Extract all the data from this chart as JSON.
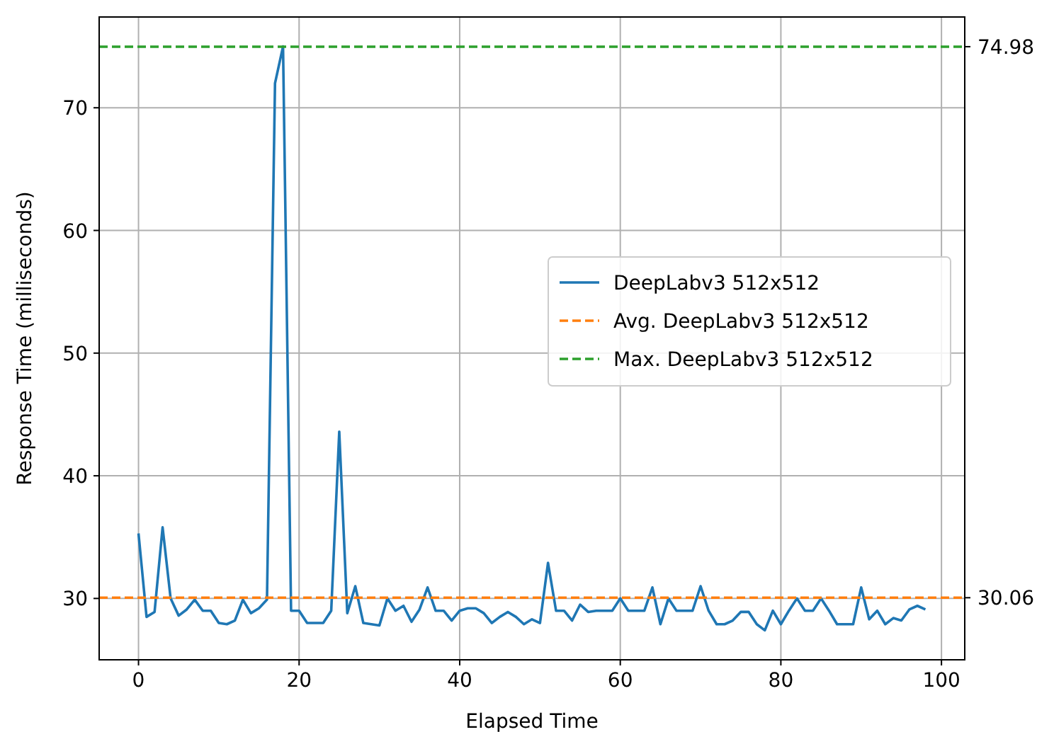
{
  "chart_data": {
    "type": "line",
    "xlabel": "Elapsed Time",
    "ylabel": "Response Time (milliseconds)",
    "x": [
      0,
      1,
      2,
      3,
      4,
      5,
      6,
      7,
      8,
      9,
      10,
      11,
      12,
      13,
      14,
      15,
      16,
      17,
      18,
      19,
      20,
      21,
      22,
      23,
      24,
      25,
      26,
      27,
      28,
      29,
      30,
      31,
      32,
      33,
      34,
      35,
      36,
      37,
      38,
      39,
      40,
      41,
      42,
      43,
      44,
      45,
      46,
      47,
      48,
      49,
      50,
      51,
      52,
      53,
      54,
      55,
      56,
      57,
      58,
      59,
      60,
      61,
      62,
      63,
      64,
      65,
      66,
      67,
      68,
      69,
      70,
      71,
      72,
      73,
      74,
      75,
      76,
      77,
      78,
      79,
      80,
      81,
      82,
      83,
      84,
      85,
      86,
      87,
      88,
      89,
      90,
      91,
      92,
      93,
      94,
      95,
      96,
      97,
      98
    ],
    "series": [
      {
        "name": "DeepLabv3 512x512",
        "color": "#1f77b4",
        "values": [
          35.3,
          28.5,
          28.9,
          35.8,
          30,
          28.6,
          29.1,
          29.9,
          29,
          29,
          28,
          27.9,
          28.2,
          29.9,
          28.8,
          29.2,
          29.9,
          72,
          75,
          29,
          29,
          28,
          28,
          28,
          29,
          43.6,
          28.8,
          31,
          28,
          27.9,
          27.8,
          30,
          29,
          29.4,
          28.1,
          29.1,
          30.9,
          29,
          29,
          28.2,
          29,
          29.2,
          29.2,
          28.8,
          28,
          28.5,
          28.9,
          28.5,
          27.9,
          28.3,
          28,
          32.9,
          29,
          29,
          28.2,
          29.5,
          28.9,
          29,
          29,
          29,
          30,
          29,
          29,
          29,
          30.9,
          27.9,
          30,
          29,
          29,
          29,
          31,
          29,
          27.9,
          27.9,
          28.2,
          28.9,
          28.9,
          27.9,
          27.4,
          29,
          27.9,
          29,
          30,
          29,
          29,
          30,
          29,
          27.9,
          27.9,
          27.9,
          30.9,
          28.3,
          29,
          27.9,
          28.4,
          28.2,
          29.1,
          29.4,
          29.1
        ]
      }
    ],
    "ref_lines": [
      {
        "axis": "y",
        "value": 30.06,
        "label": "Avg. DeepLabv3 512x512",
        "color": "#ff7f0e",
        "line_style": "dashed"
      },
      {
        "axis": "y",
        "value": 74.98,
        "label": "Max. DeepLabv3 512x512",
        "color": "#2ca02c",
        "line_style": "dashed"
      }
    ],
    "xlim": [
      -4.9,
      102.9
    ],
    "xticks": [
      0,
      20,
      40,
      60,
      80,
      100
    ],
    "ylim": [
      25,
      77.4
    ],
    "yticks": [
      30,
      40,
      50,
      60,
      70
    ],
    "y2lim": [
      25,
      77.4
    ],
    "y2ticks": [
      30.06,
      74.98
    ],
    "grid": true,
    "legend": "center right",
    "marker": "none",
    "line_style": "solid"
  }
}
